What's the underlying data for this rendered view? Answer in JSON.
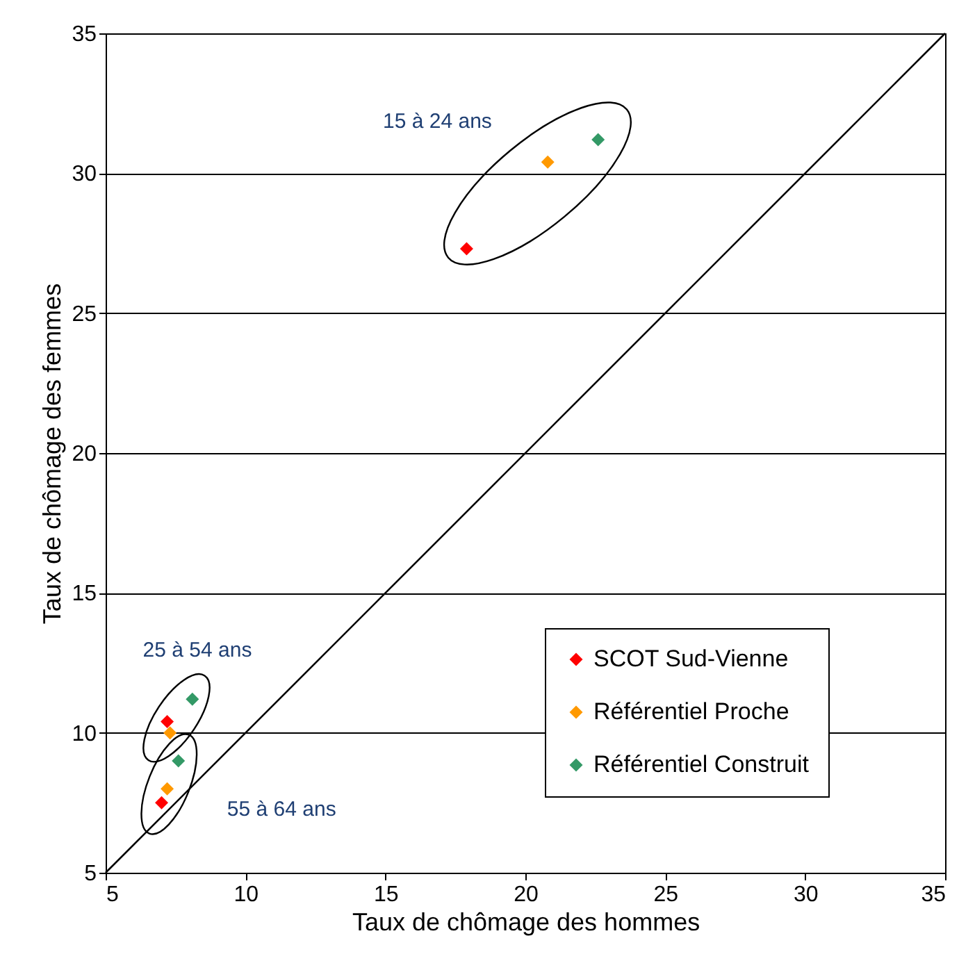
{
  "chart_data": {
    "type": "scatter",
    "xlabel": "Taux de chômage des hommes",
    "ylabel": "Taux de chômage des femmes",
    "xlim": [
      5,
      35
    ],
    "ylim": [
      5,
      35
    ],
    "xticks": [
      5,
      10,
      15,
      20,
      25,
      30,
      35
    ],
    "yticks": [
      5,
      10,
      15,
      20,
      25,
      30,
      35
    ],
    "grid": "y",
    "legend": "bottom right",
    "series": [
      {
        "name": "SCOT Sud-Vienne",
        "color": "#ff0000",
        "marker": "diamond",
        "x": [
          17.9,
          7.2,
          7.0
        ],
        "values": [
          27.3,
          10.4,
          7.5
        ]
      },
      {
        "name": "Référentiel Proche",
        "color": "#ff9900",
        "marker": "diamond",
        "x": [
          20.8,
          7.3,
          7.2
        ],
        "values": [
          30.4,
          10.0,
          8.0
        ]
      },
      {
        "name": "Référentiel Construit",
        "color": "#339966",
        "marker": "diamond",
        "x": [
          22.6,
          8.1,
          7.6
        ],
        "values": [
          31.2,
          11.2,
          9.0
        ]
      },
      {
        "type": "line",
        "color": "#000000",
        "x": [
          5,
          35
        ],
        "values": [
          5,
          35
        ]
      }
    ],
    "annotations": [
      "15 à 24 ans",
      "25 à 54 ans",
      "55 à 64 ans"
    ]
  }
}
